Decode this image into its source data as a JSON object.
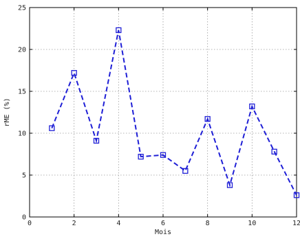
{
  "chart_data": {
    "type": "line",
    "xlabel": "Mois",
    "ylabel": "rME (%)",
    "xlim": [
      0,
      12
    ],
    "ylim": [
      0,
      25
    ],
    "xticks": [
      0,
      2,
      4,
      6,
      8,
      10,
      12
    ],
    "yticks": [
      0,
      5,
      10,
      15,
      20,
      25
    ],
    "grid": true,
    "series": [
      {
        "x": [
          1,
          2,
          3,
          4,
          5,
          6,
          7,
          8,
          9,
          10,
          11,
          12
        ],
        "y": [
          10.6,
          17.2,
          9.1,
          22.3,
          7.2,
          7.4,
          5.5,
          11.7,
          3.8,
          13.2,
          7.8,
          2.6
        ],
        "color": "#1f1fd6",
        "line_style": "dashed",
        "marker": "square"
      }
    ]
  }
}
